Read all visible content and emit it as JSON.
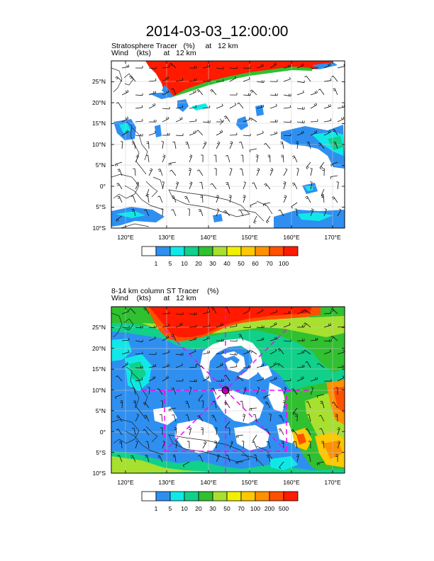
{
  "title": "2014-03-03_12:00:00",
  "panels": [
    {
      "line1": "Stratosphere Tracer   (%)     at   12 km",
      "line2": "Wind    (kts)      at   12 km",
      "lat_labels": [
        "25°N",
        "20°N",
        "15°N",
        "10°N",
        "5°N",
        "0°",
        "5°S",
        "10°S"
      ],
      "lon_labels": [
        "120°E",
        "130°E",
        "140°E",
        "150°E",
        "160°E",
        "170°E"
      ],
      "colorbar_labels": [
        "1",
        "5",
        "10",
        "20",
        "30",
        "40",
        "50",
        "60",
        "70",
        "100"
      ],
      "colorbar_colors": [
        "#ffffff",
        "#2f8ff0",
        "#10e8e8",
        "#10d08a",
        "#30c030",
        "#a8e030",
        "#f0f000",
        "#ffc800",
        "#ff9000",
        "#ff5000",
        "#ff1a00"
      ]
    },
    {
      "line1": "8-14 km column ST Tracer    (%)",
      "line2": "Wind    (kts)      at   12 km",
      "lat_labels": [
        "25°N",
        "20°N",
        "15°N",
        "10°N",
        "5°N",
        "0°",
        "5°S",
        "10°S"
      ],
      "lon_labels": [
        "120°E",
        "130°E",
        "140°E",
        "150°E",
        "160°E",
        "170°E"
      ],
      "colorbar_labels": [
        "1",
        "5",
        "10",
        "20",
        "30",
        "50",
        "70",
        "100",
        "200",
        "500"
      ],
      "colorbar_colors": [
        "#ffffff",
        "#2f8ff0",
        "#10e8e8",
        "#10d08a",
        "#30c030",
        "#a8e030",
        "#f0f000",
        "#ffc800",
        "#ff9000",
        "#ff5000",
        "#ff1a00"
      ]
    }
  ]
}
